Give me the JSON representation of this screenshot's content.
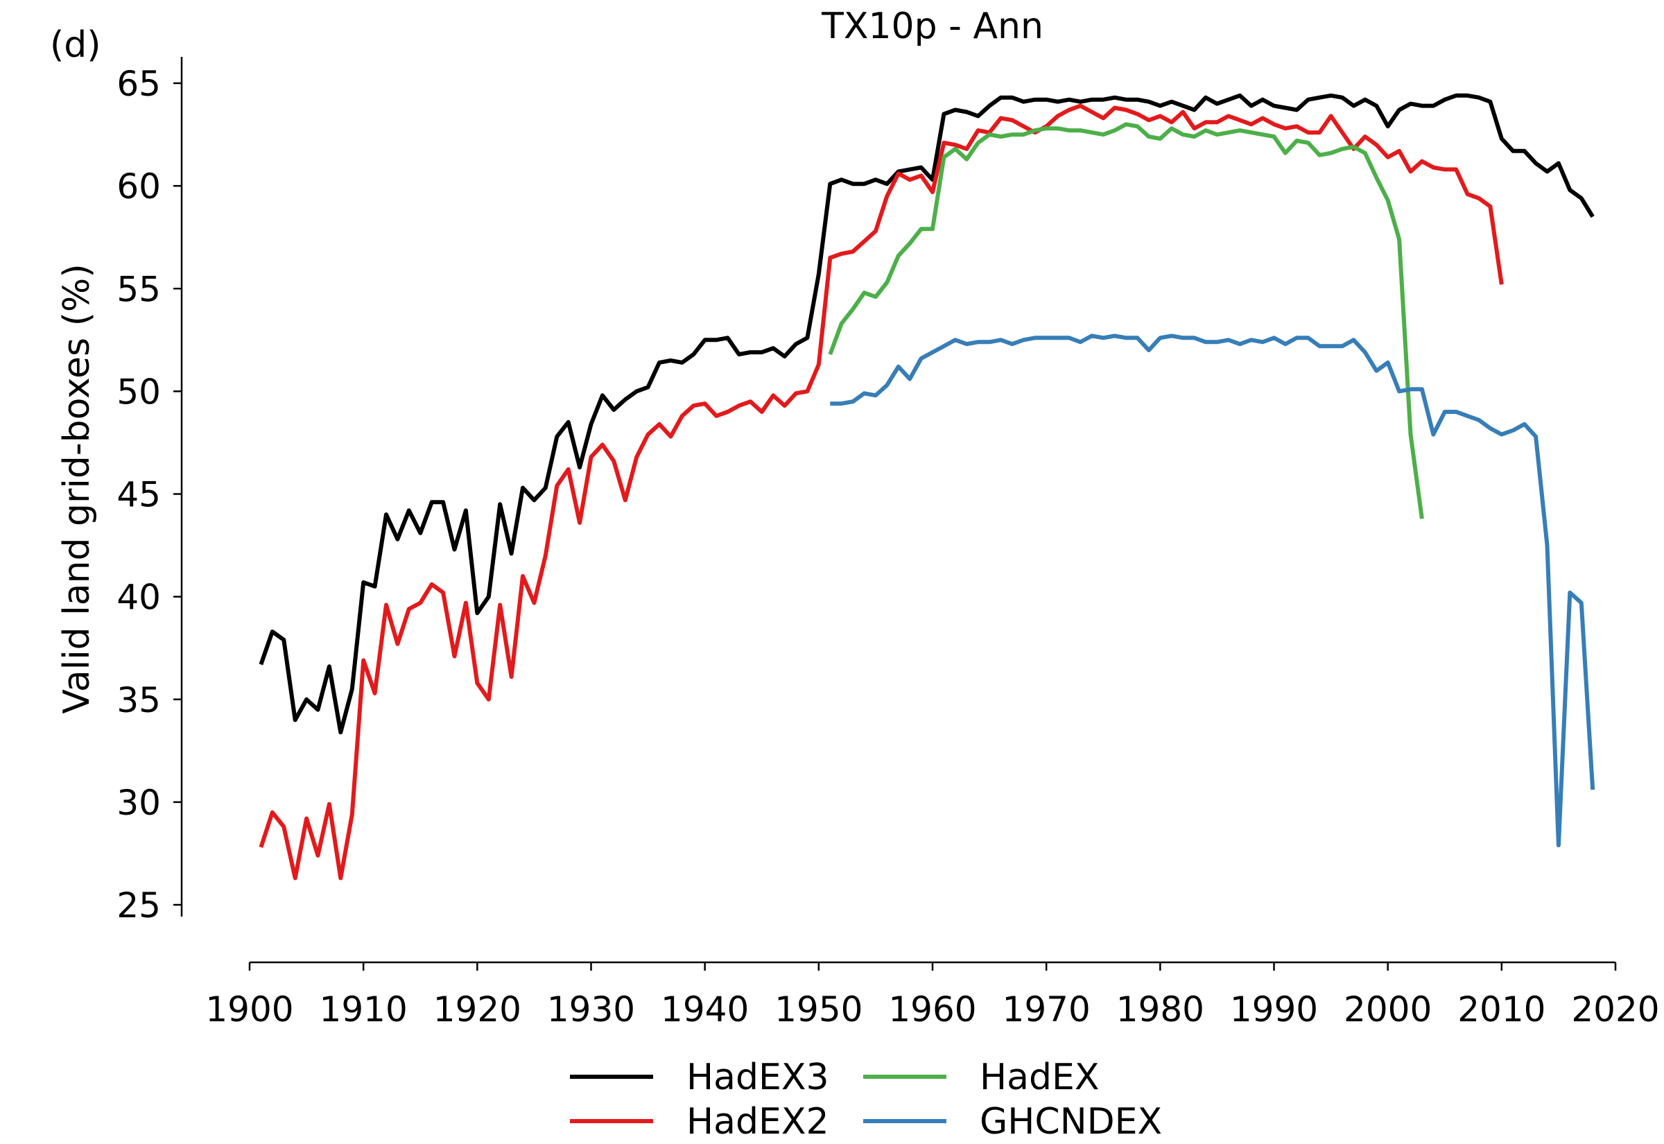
{
  "chart_data": {
    "type": "line",
    "panel_label": "(d)",
    "title": "TX10p - Ann",
    "ylabel": "Valid land grid-boxes (%)",
    "xlabel": "",
    "xlim": [
      1900,
      2020
    ],
    "ylim": [
      25,
      65
    ],
    "xticks": [
      1900,
      1910,
      1920,
      1930,
      1940,
      1950,
      1960,
      1970,
      1980,
      1990,
      2000,
      2010,
      2020
    ],
    "yticks": [
      25,
      30,
      35,
      40,
      45,
      50,
      55,
      60,
      65
    ],
    "grid": false,
    "legend_position": "bottom",
    "series": [
      {
        "name": "HadEX3",
        "color": "#000000",
        "x_start": 1901,
        "values": [
          36.7,
          38.3,
          37.9,
          34.0,
          35.0,
          34.5,
          36.6,
          33.4,
          35.5,
          40.7,
          40.5,
          44.0,
          42.8,
          44.2,
          43.1,
          44.6,
          44.6,
          42.3,
          44.2,
          39.2,
          40.0,
          44.5,
          42.1,
          45.3,
          44.7,
          45.3,
          47.8,
          48.5,
          46.3,
          48.4,
          49.8,
          49.1,
          49.6,
          50.0,
          50.2,
          51.4,
          51.5,
          51.4,
          51.8,
          52.5,
          52.5,
          52.6,
          51.8,
          51.9,
          51.9,
          52.1,
          51.7,
          52.3,
          52.6,
          55.7,
          60.1,
          60.3,
          60.1,
          60.1,
          60.3,
          60.1,
          60.7,
          60.8,
          60.9,
          60.3,
          63.5,
          63.7,
          63.6,
          63.4,
          63.9,
          64.3,
          64.3,
          64.1,
          64.2,
          64.2,
          64.1,
          64.2,
          64.1,
          64.2,
          64.2,
          64.3,
          64.2,
          64.2,
          64.1,
          63.9,
          64.1,
          63.9,
          63.7,
          64.3,
          64.0,
          64.2,
          64.4,
          63.9,
          64.2,
          63.9,
          63.8,
          63.7,
          64.2,
          64.3,
          64.4,
          64.3,
          63.9,
          64.2,
          63.9,
          62.9,
          63.7,
          64.0,
          63.9,
          63.9,
          64.2,
          64.4,
          64.4,
          64.3,
          64.1,
          62.3,
          61.7,
          61.7,
          61.1,
          60.7,
          61.1,
          59.8,
          59.4,
          58.5
        ]
      },
      {
        "name": "HadEX2",
        "color": "#e31a1c",
        "x_start": 1901,
        "values": [
          27.8,
          29.5,
          28.8,
          26.3,
          29.2,
          27.4,
          29.9,
          26.3,
          29.4,
          36.9,
          35.3,
          39.6,
          37.7,
          39.4,
          39.7,
          40.6,
          40.2,
          37.1,
          39.7,
          35.8,
          35.0,
          39.6,
          36.1,
          41.0,
          39.7,
          42.0,
          45.4,
          46.2,
          43.6,
          46.8,
          47.4,
          46.6,
          44.7,
          46.8,
          47.9,
          48.4,
          47.8,
          48.8,
          49.3,
          49.4,
          48.8,
          49.0,
          49.3,
          49.5,
          49.0,
          49.8,
          49.3,
          49.9,
          50.0,
          51.3,
          56.5,
          56.7,
          56.8,
          57.3,
          57.8,
          59.5,
          60.6,
          60.3,
          60.5,
          59.7,
          62.1,
          62.0,
          61.8,
          62.7,
          62.6,
          63.3,
          63.2,
          62.9,
          62.6,
          62.9,
          63.4,
          63.7,
          63.9,
          63.6,
          63.3,
          63.8,
          63.7,
          63.5,
          63.2,
          63.4,
          63.1,
          63.6,
          62.8,
          63.1,
          63.1,
          63.4,
          63.2,
          63.0,
          63.3,
          63.0,
          62.8,
          62.9,
          62.6,
          62.6,
          63.4,
          62.6,
          61.8,
          62.4,
          62.0,
          61.4,
          61.7,
          60.7,
          61.2,
          60.9,
          60.8,
          60.8,
          59.6,
          59.4,
          59.0,
          55.2
        ]
      },
      {
        "name": "HadEX",
        "color": "#4daf4a",
        "x_start": 1951,
        "values": [
          51.8,
          53.3,
          54.0,
          54.8,
          54.6,
          55.3,
          56.6,
          57.2,
          57.9,
          57.9,
          61.4,
          61.8,
          61.3,
          62.1,
          62.5,
          62.4,
          62.5,
          62.5,
          62.7,
          62.8,
          62.8,
          62.7,
          62.7,
          62.6,
          62.5,
          62.7,
          63.0,
          62.9,
          62.4,
          62.3,
          62.8,
          62.5,
          62.4,
          62.7,
          62.5,
          62.6,
          62.7,
          62.6,
          62.5,
          62.4,
          61.6,
          62.2,
          62.1,
          61.5,
          61.6,
          61.8,
          61.9,
          61.6,
          60.4,
          59.3,
          57.4,
          47.9,
          43.8
        ]
      },
      {
        "name": "GHCNDEX",
        "color": "#377eb8",
        "x_start": 1951,
        "values": [
          49.4,
          49.4,
          49.5,
          49.9,
          49.8,
          50.3,
          51.2,
          50.6,
          51.6,
          51.9,
          52.2,
          52.5,
          52.3,
          52.4,
          52.4,
          52.5,
          52.3,
          52.5,
          52.6,
          52.6,
          52.6,
          52.6,
          52.4,
          52.7,
          52.6,
          52.7,
          52.6,
          52.6,
          52.0,
          52.6,
          52.7,
          52.6,
          52.6,
          52.4,
          52.4,
          52.5,
          52.3,
          52.5,
          52.4,
          52.6,
          52.3,
          52.6,
          52.6,
          52.2,
          52.2,
          52.2,
          52.5,
          51.9,
          51.0,
          51.4,
          50.0,
          50.1,
          50.1,
          47.9,
          49.0,
          49.0,
          48.8,
          48.6,
          48.2,
          47.9,
          48.1,
          48.4,
          47.8,
          42.5,
          27.9,
          40.2,
          39.7,
          30.6
        ]
      }
    ],
    "legend": {
      "entries": [
        "HadEX3",
        "HadEX2",
        "HadEX",
        "GHCNDEX"
      ]
    }
  }
}
